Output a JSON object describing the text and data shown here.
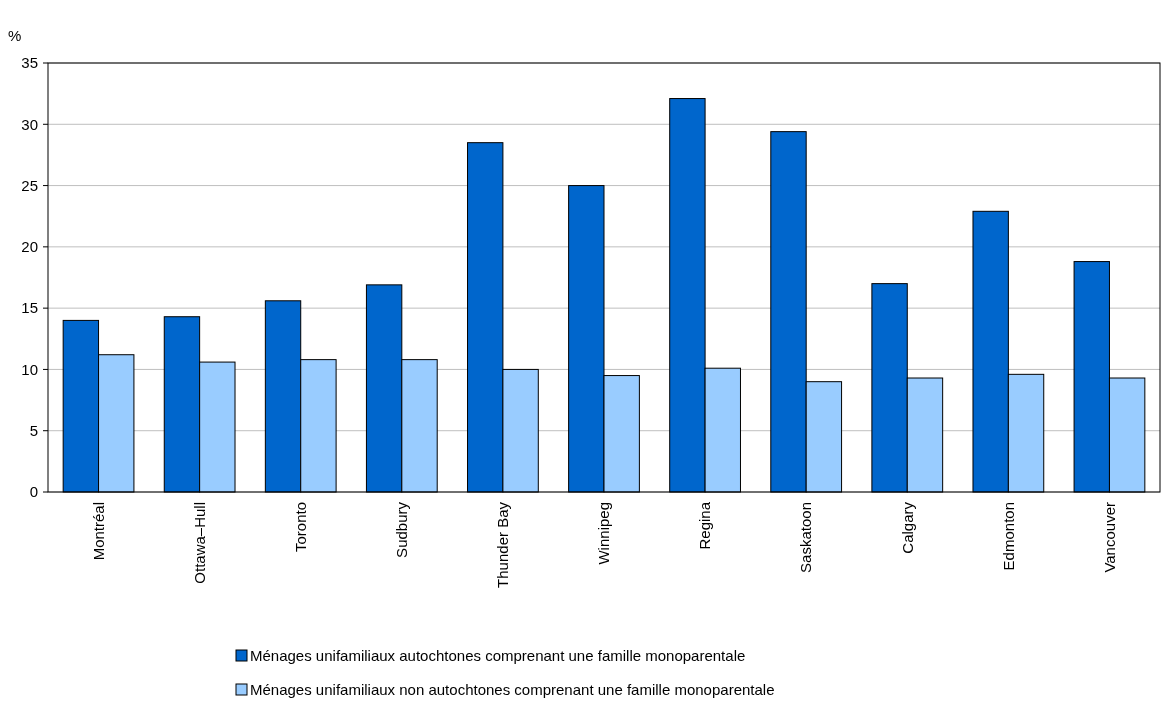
{
  "chart_data": {
    "type": "bar",
    "ylabel": "%",
    "categories": [
      "Montréal",
      "Ottawa–Hull",
      "Toronto",
      "Sudbury",
      "Thunder Bay",
      "Winnipeg",
      "Regina",
      "Saskatoon",
      "Calgary",
      "Edmonton",
      "Vancouver"
    ],
    "series": [
      {
        "name": "Ménages unifamiliaux autochtones comprenant une famille monoparentale",
        "color": "#0066cc",
        "values": [
          14.0,
          14.3,
          15.6,
          16.9,
          28.5,
          25.0,
          32.1,
          29.4,
          17.0,
          22.9,
          18.8
        ]
      },
      {
        "name": "Ménages unifamiliaux non autochtones comprenant une famille monoparentale",
        "color": "#99ccff",
        "values": [
          11.2,
          10.6,
          10.8,
          10.8,
          10.0,
          9.5,
          10.1,
          9.0,
          9.3,
          9.6,
          9.3
        ]
      }
    ],
    "ylim": [
      0,
      35
    ],
    "yticks": [
      0,
      5,
      10,
      15,
      20,
      25,
      30,
      35
    ],
    "grid": "y",
    "legend": "bottom"
  }
}
